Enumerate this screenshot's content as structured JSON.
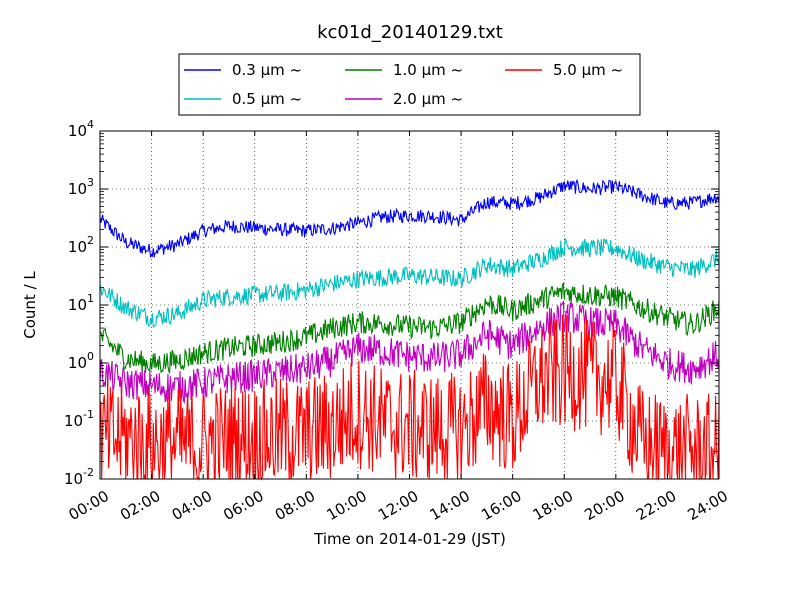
{
  "chart_data": {
    "type": "line",
    "title": "kc01d_20140129.txt",
    "xlabel": "Time on 2014-01-29 (JST)",
    "ylabel": "Count / L",
    "y_scale": "log",
    "ylim": [
      0.01,
      10000
    ],
    "xlim": [
      "00:00",
      "24:00"
    ],
    "grid": true,
    "legend_position": "top-center",
    "x_ticks": [
      "00:00",
      "02:00",
      "04:00",
      "06:00",
      "08:00",
      "10:00",
      "12:00",
      "14:00",
      "16:00",
      "18:00",
      "20:00",
      "22:00",
      "24:00"
    ],
    "y_ticks": [
      {
        "base": "10",
        "exp": "-2"
      },
      {
        "base": "10",
        "exp": "-1"
      },
      {
        "base": "10",
        "exp": "0"
      },
      {
        "base": "10",
        "exp": "1"
      },
      {
        "base": "10",
        "exp": "2"
      },
      {
        "base": "10",
        "exp": "3"
      },
      {
        "base": "10",
        "exp": "4"
      }
    ],
    "x_hours": [
      0,
      1,
      2,
      3,
      4,
      5,
      6,
      7,
      8,
      9,
      10,
      11,
      12,
      13,
      14,
      15,
      16,
      17,
      18,
      19,
      20,
      21,
      22,
      23,
      24
    ],
    "series": [
      {
        "name": "0.3 μm ~",
        "color": "#0000ff",
        "noise": 0.03,
        "values": [
          300,
          120,
          85,
          110,
          190,
          230,
          215,
          200,
          190,
          210,
          260,
          330,
          350,
          340,
          290,
          600,
          560,
          700,
          1150,
          1000,
          1100,
          780,
          560,
          580,
          760
        ]
      },
      {
        "name": "0.5 μm ~",
        "color": "#00bfbf",
        "noise": 0.04,
        "values": [
          20,
          9,
          6,
          7,
          12,
          14,
          15,
          16,
          18,
          23,
          28,
          30,
          32,
          30,
          28,
          50,
          42,
          60,
          100,
          95,
          95,
          60,
          45,
          40,
          65
        ]
      },
      {
        "name": "1.0 μm ~",
        "color": "#008000",
        "noise": 0.05,
        "values": [
          3,
          1.2,
          0.95,
          1.1,
          1.5,
          1.8,
          2.0,
          2.3,
          2.8,
          4.0,
          5.0,
          4.8,
          4.2,
          4.0,
          5.0,
          11,
          8,
          12,
          17,
          15,
          14,
          9,
          6,
          4.5,
          9
        ]
      },
      {
        "name": "2.0 μm ~",
        "color": "#bf00bf",
        "noise": 0.07,
        "values": [
          0.7,
          0.45,
          0.4,
          0.38,
          0.45,
          0.55,
          0.6,
          0.7,
          0.8,
          1.1,
          1.8,
          1.6,
          1.3,
          1.2,
          1.4,
          3.2,
          2.0,
          4.0,
          6.5,
          5.0,
          4.5,
          1.8,
          1.0,
          0.8,
          1.4
        ]
      },
      {
        "name": "5.0 μm ~",
        "color": "#ff0000",
        "noise": 0.25,
        "values": [
          0.05,
          0.05,
          0.04,
          0.04,
          0.04,
          0.05,
          0.05,
          0.06,
          0.06,
          0.08,
          0.15,
          0.09,
          0.08,
          0.07,
          0.07,
          0.2,
          0.1,
          0.5,
          0.7,
          0.6,
          0.5,
          0.04,
          0.03,
          0.03,
          0.03
        ]
      }
    ]
  }
}
